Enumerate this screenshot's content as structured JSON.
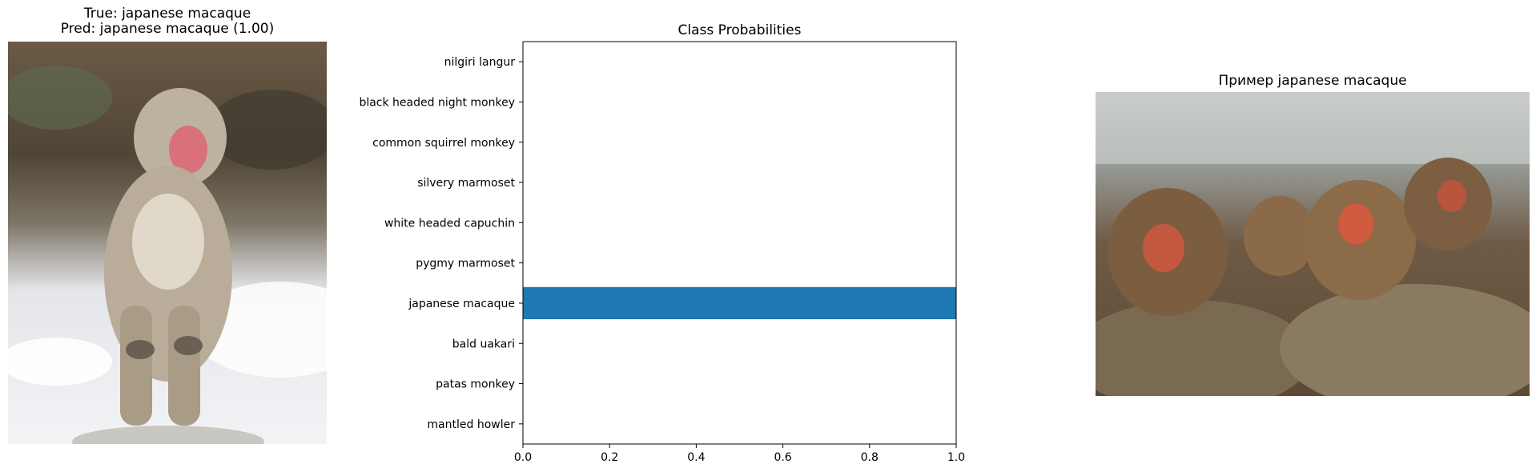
{
  "left_panel": {
    "title_line1": "True: japanese macaque",
    "title_line2": "Pred: japanese macaque (1.00)",
    "image_description": "photo of a japanese macaque standing upright in snow"
  },
  "right_panel": {
    "title": "Пример japanese macaque",
    "image_description": "photo of four japanese macaques resting on rocks in a hot spring"
  },
  "colors": {
    "bar": "#1f77b4"
  },
  "chart_data": {
    "type": "bar",
    "orientation": "horizontal",
    "title": "Class Probabilities",
    "xlabel": "",
    "ylabel": "",
    "categories": [
      "nilgiri langur",
      "black headed night monkey",
      "common squirrel monkey",
      "silvery marmoset",
      "white headed capuchin",
      "pygmy marmoset",
      "japanese macaque",
      "bald uakari",
      "patas monkey",
      "mantled howler"
    ],
    "values": [
      0,
      0,
      0,
      0,
      0,
      0,
      1.0,
      0,
      0,
      0
    ],
    "xlim": [
      0,
      1.0
    ],
    "xticks": [
      "0.0",
      "0.2",
      "0.4",
      "0.6",
      "0.8",
      "1.0"
    ],
    "grid": false
  }
}
